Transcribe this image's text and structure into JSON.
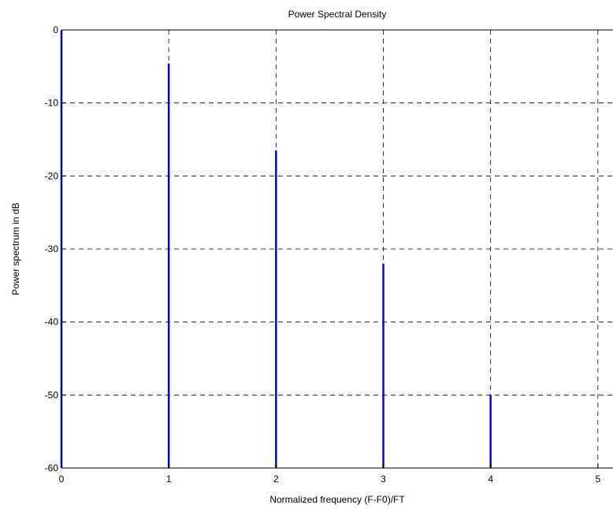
{
  "chart_data": {
    "type": "bar",
    "title": "Power Spectral Density",
    "xlabel": "Normalized frequency (F-F0)/FT",
    "ylabel": "Power spectrum in dB",
    "xlim": [
      0,
      6
    ],
    "ylim": [
      -60,
      0
    ],
    "xticks": [
      "0",
      "1",
      "2",
      "3",
      "4",
      "5",
      "6"
    ],
    "yticks": [
      "0",
      "-10",
      "-20",
      "-30",
      "-40",
      "-50",
      "-60"
    ],
    "grid": true,
    "grid_style": "dashed",
    "series_color": "#0000ff",
    "x": [
      0,
      1,
      2,
      3,
      4
    ],
    "values": [
      0,
      -4.6,
      -16.5,
      -32,
      -50
    ]
  }
}
